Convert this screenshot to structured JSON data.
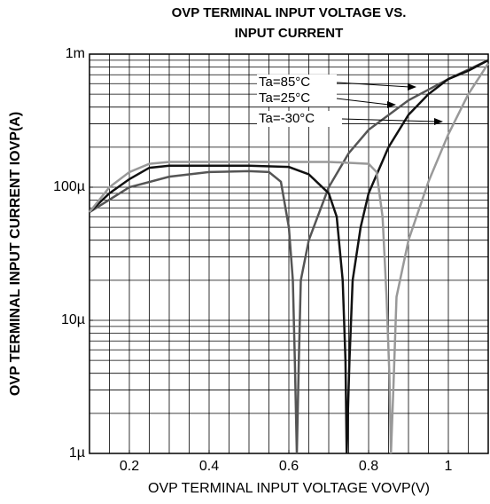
{
  "chart_data": {
    "type": "line",
    "title": [
      "OVP TERMINAL INPUT VOLTAGE VS.",
      "INPUT CURRENT"
    ],
    "xlabel": "OVP TERMINAL INPUT VOLTAGE VOVP(V)",
    "ylabel": "OVP TERMINAL INPUT CURRENT IOVP(A)",
    "xlim": [
      0.1,
      1.1
    ],
    "ylim": [
      1e-06,
      0.001
    ],
    "log_y": true,
    "grid": true,
    "xticks": [
      0.2,
      0.4,
      0.6,
      0.8,
      1.0
    ],
    "yticks": [
      {
        "value": 1e-06,
        "label": "1µ"
      },
      {
        "value": 1e-05,
        "label": "10µ"
      },
      {
        "value": 0.0001,
        "label": "100µ"
      },
      {
        "value": 0.001,
        "label": "1m"
      }
    ],
    "xgrid": [
      0.15,
      0.2,
      0.25,
      0.3,
      0.35,
      0.4,
      0.45,
      0.5,
      0.55,
      0.6,
      0.65,
      0.7,
      0.75,
      0.8,
      0.85,
      0.9,
      0.95,
      1.0,
      1.05
    ],
    "ygrid": [
      2e-06,
      3e-06,
      4e-06,
      5e-06,
      6e-06,
      7e-06,
      8e-06,
      9e-06,
      1e-05,
      2e-05,
      3e-05,
      4e-05,
      5e-05,
      6e-05,
      7e-05,
      8e-05,
      9e-05,
      0.0001,
      0.0002,
      0.0003,
      0.0004,
      0.0005,
      0.0006,
      0.0007,
      0.0008,
      0.0009
    ],
    "series": [
      {
        "name": "Ta=85°C",
        "color": "#555555",
        "x": [
          0.1,
          0.2,
          0.3,
          0.4,
          0.5,
          0.55,
          0.58,
          0.6,
          0.61,
          0.615,
          0.62,
          0.625,
          0.63,
          0.65,
          0.7,
          0.75,
          0.8,
          0.9,
          1.0,
          1.1
        ],
        "values": [
          6.5e-05,
          0.0001,
          0.00012,
          0.00013,
          0.000132,
          0.00013,
          0.00011,
          5e-05,
          2e-05,
          5e-06,
          1e-06,
          5e-06,
          2e-05,
          4e-05,
          0.0001,
          0.00018,
          0.00027,
          0.00045,
          0.00065,
          0.0009
        ]
      },
      {
        "name": "Ta=25°C",
        "color": "#111111",
        "x": [
          0.1,
          0.15,
          0.2,
          0.25,
          0.3,
          0.5,
          0.6,
          0.65,
          0.7,
          0.72,
          0.735,
          0.742,
          0.745,
          0.752,
          0.76,
          0.78,
          0.8,
          0.85,
          0.9,
          0.95,
          1.0,
          1.05,
          1.1
        ],
        "values": [
          6.5e-05,
          9e-05,
          0.000115,
          0.00014,
          0.000145,
          0.000145,
          0.000142,
          0.000125,
          9e-05,
          6e-05,
          2e-05,
          5e-06,
          1e-06,
          5e-06,
          2e-05,
          5e-05,
          9e-05,
          0.0002,
          0.00035,
          0.0005,
          0.00065,
          0.00075,
          0.0009
        ]
      },
      {
        "name": "Ta=-30°C",
        "color": "#999999",
        "x": [
          0.1,
          0.15,
          0.2,
          0.25,
          0.3,
          0.5,
          0.7,
          0.8,
          0.82,
          0.835,
          0.845,
          0.852,
          0.856,
          0.862,
          0.87,
          0.9,
          0.95,
          1.0,
          1.05,
          1.1
        ],
        "values": [
          6.5e-05,
          0.0001,
          0.00013,
          0.00015,
          0.000155,
          0.000155,
          0.000155,
          0.00015,
          0.00013,
          6e-05,
          1.5e-05,
          4e-06,
          1e-06,
          3e-06,
          1.5e-05,
          4e-05,
          0.00011,
          0.00025,
          0.0005,
          0.00085
        ]
      }
    ]
  }
}
